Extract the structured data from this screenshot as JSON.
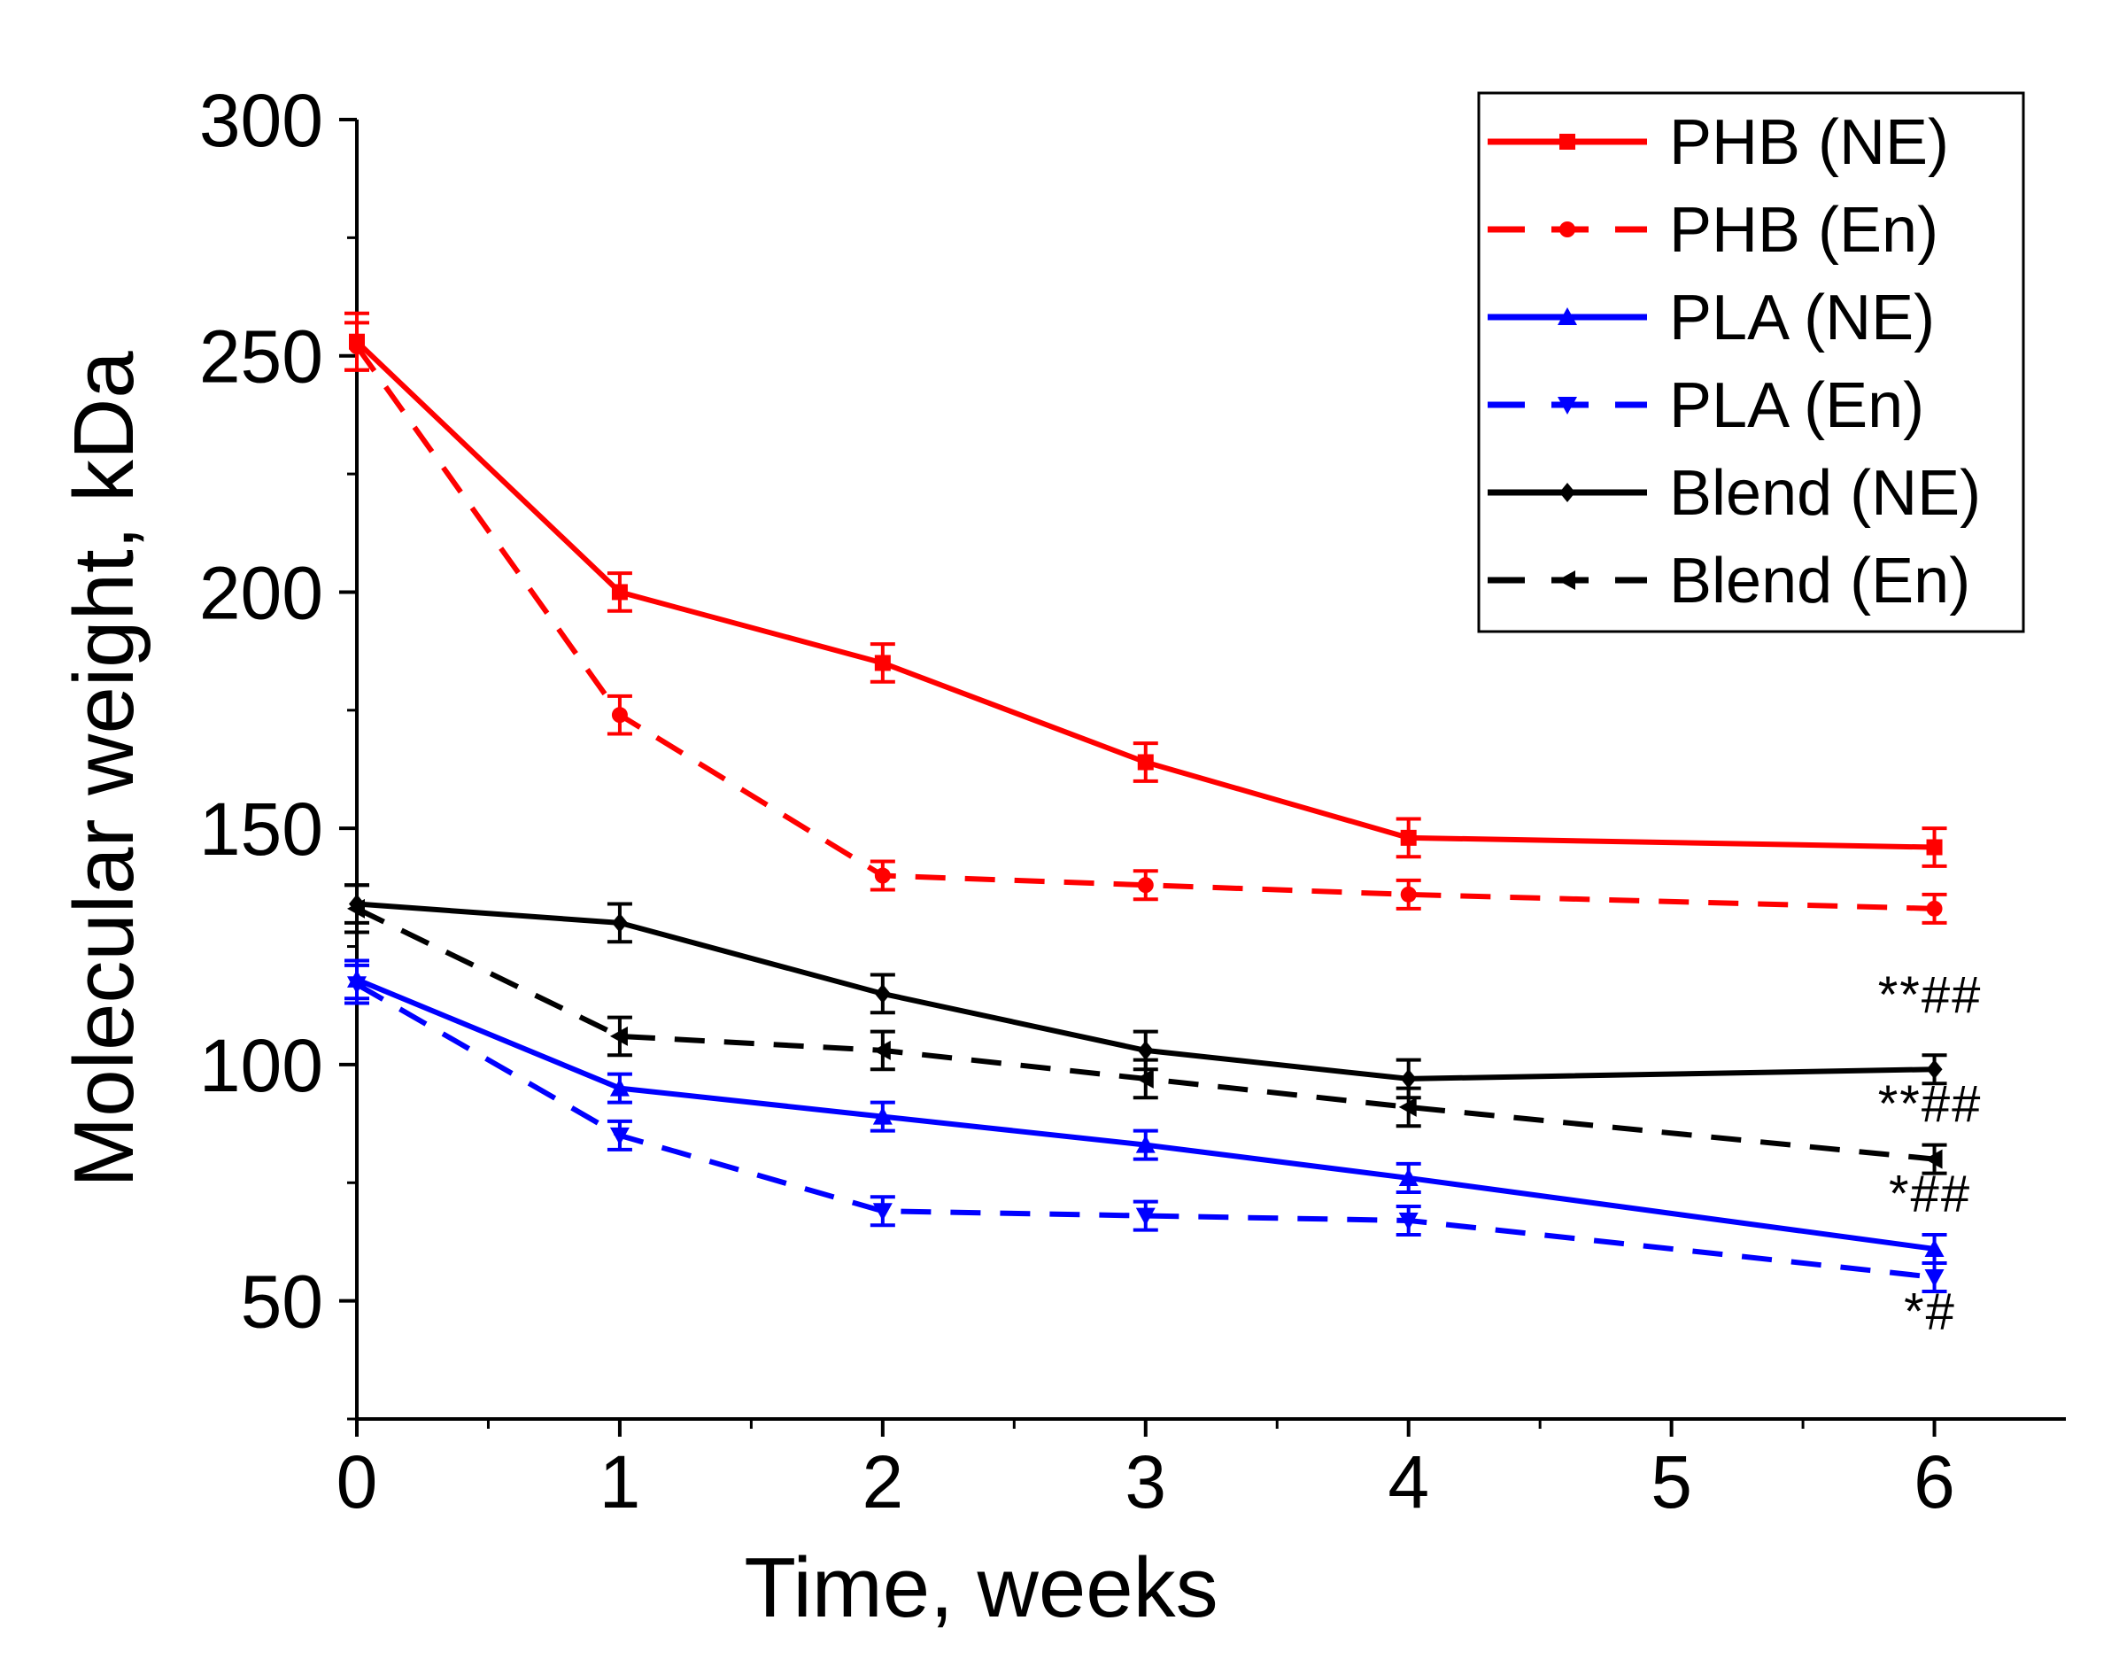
{
  "chart_data": {
    "type": "line",
    "title": "",
    "xlabel": "Time, weeks",
    "ylabel": "Molecular weight, kDa",
    "xlim": [
      0,
      6.5
    ],
    "ylim": [
      25,
      300
    ],
    "x_ticks": [
      0,
      1,
      2,
      3,
      4,
      5,
      6
    ],
    "x_tick_labels": [
      "0",
      "1",
      "2",
      "3",
      "4",
      "5",
      "6"
    ],
    "y_ticks": [
      50,
      100,
      150,
      200,
      250,
      300
    ],
    "y_tick_labels": [
      "50",
      "100",
      "150",
      "200",
      "250",
      "300"
    ],
    "legend_position": "top-right",
    "grid": false,
    "series": [
      {
        "name": "PHB (NE)",
        "color": "#ff0000",
        "dashed": false,
        "marker": "square",
        "x": [
          0,
          1,
          2,
          3,
          4,
          6
        ],
        "values": [
          253,
          200,
          185,
          164,
          148,
          146
        ],
        "errors": [
          6,
          4,
          4,
          4,
          4,
          4
        ]
      },
      {
        "name": "PHB (En)",
        "color": "#ff0000",
        "dashed": true,
        "marker": "circle",
        "x": [
          0,
          1,
          2,
          3,
          4,
          6
        ],
        "values": [
          252,
          174,
          140,
          138,
          136,
          133
        ],
        "errors": [
          5,
          4,
          3,
          3,
          3,
          3
        ]
      },
      {
        "name": "PLA (NE)",
        "color": "#0000ff",
        "dashed": false,
        "marker": "triangle-up",
        "x": [
          0,
          1,
          2,
          3,
          4,
          6
        ],
        "values": [
          118,
          95,
          89,
          83,
          76,
          61
        ],
        "errors": [
          4,
          3,
          3,
          3,
          3,
          3
        ]
      },
      {
        "name": "PLA (En)",
        "color": "#0000ff",
        "dashed": true,
        "marker": "triangle-down",
        "x": [
          0,
          1,
          2,
          3,
          4,
          6
        ],
        "values": [
          117,
          85,
          69,
          68,
          67,
          55
        ],
        "errors": [
          4,
          3,
          3,
          3,
          3,
          3
        ]
      },
      {
        "name": "Blend (NE)",
        "color": "#000000",
        "dashed": false,
        "marker": "diamond",
        "x": [
          0,
          1,
          2,
          3,
          4,
          6
        ],
        "values": [
          134,
          130,
          115,
          103,
          97,
          99
        ],
        "errors": [
          4,
          4,
          4,
          4,
          4,
          3
        ]
      },
      {
        "name": "Blend (En)",
        "color": "#000000",
        "dashed": true,
        "marker": "triangle-left",
        "x": [
          0,
          1,
          2,
          3,
          4,
          6
        ],
        "values": [
          133,
          106,
          103,
          97,
          91,
          80
        ],
        "errors": [
          5,
          4,
          4,
          4,
          4,
          3
        ]
      }
    ],
    "annotations": [
      {
        "text": "**##",
        "x": 6,
        "y": 111
      },
      {
        "text": "**##",
        "x": 6,
        "y": 88
      },
      {
        "text": "*##",
        "x": 6,
        "y": 69
      },
      {
        "text": "*#",
        "x": 6,
        "y": 44
      }
    ]
  }
}
